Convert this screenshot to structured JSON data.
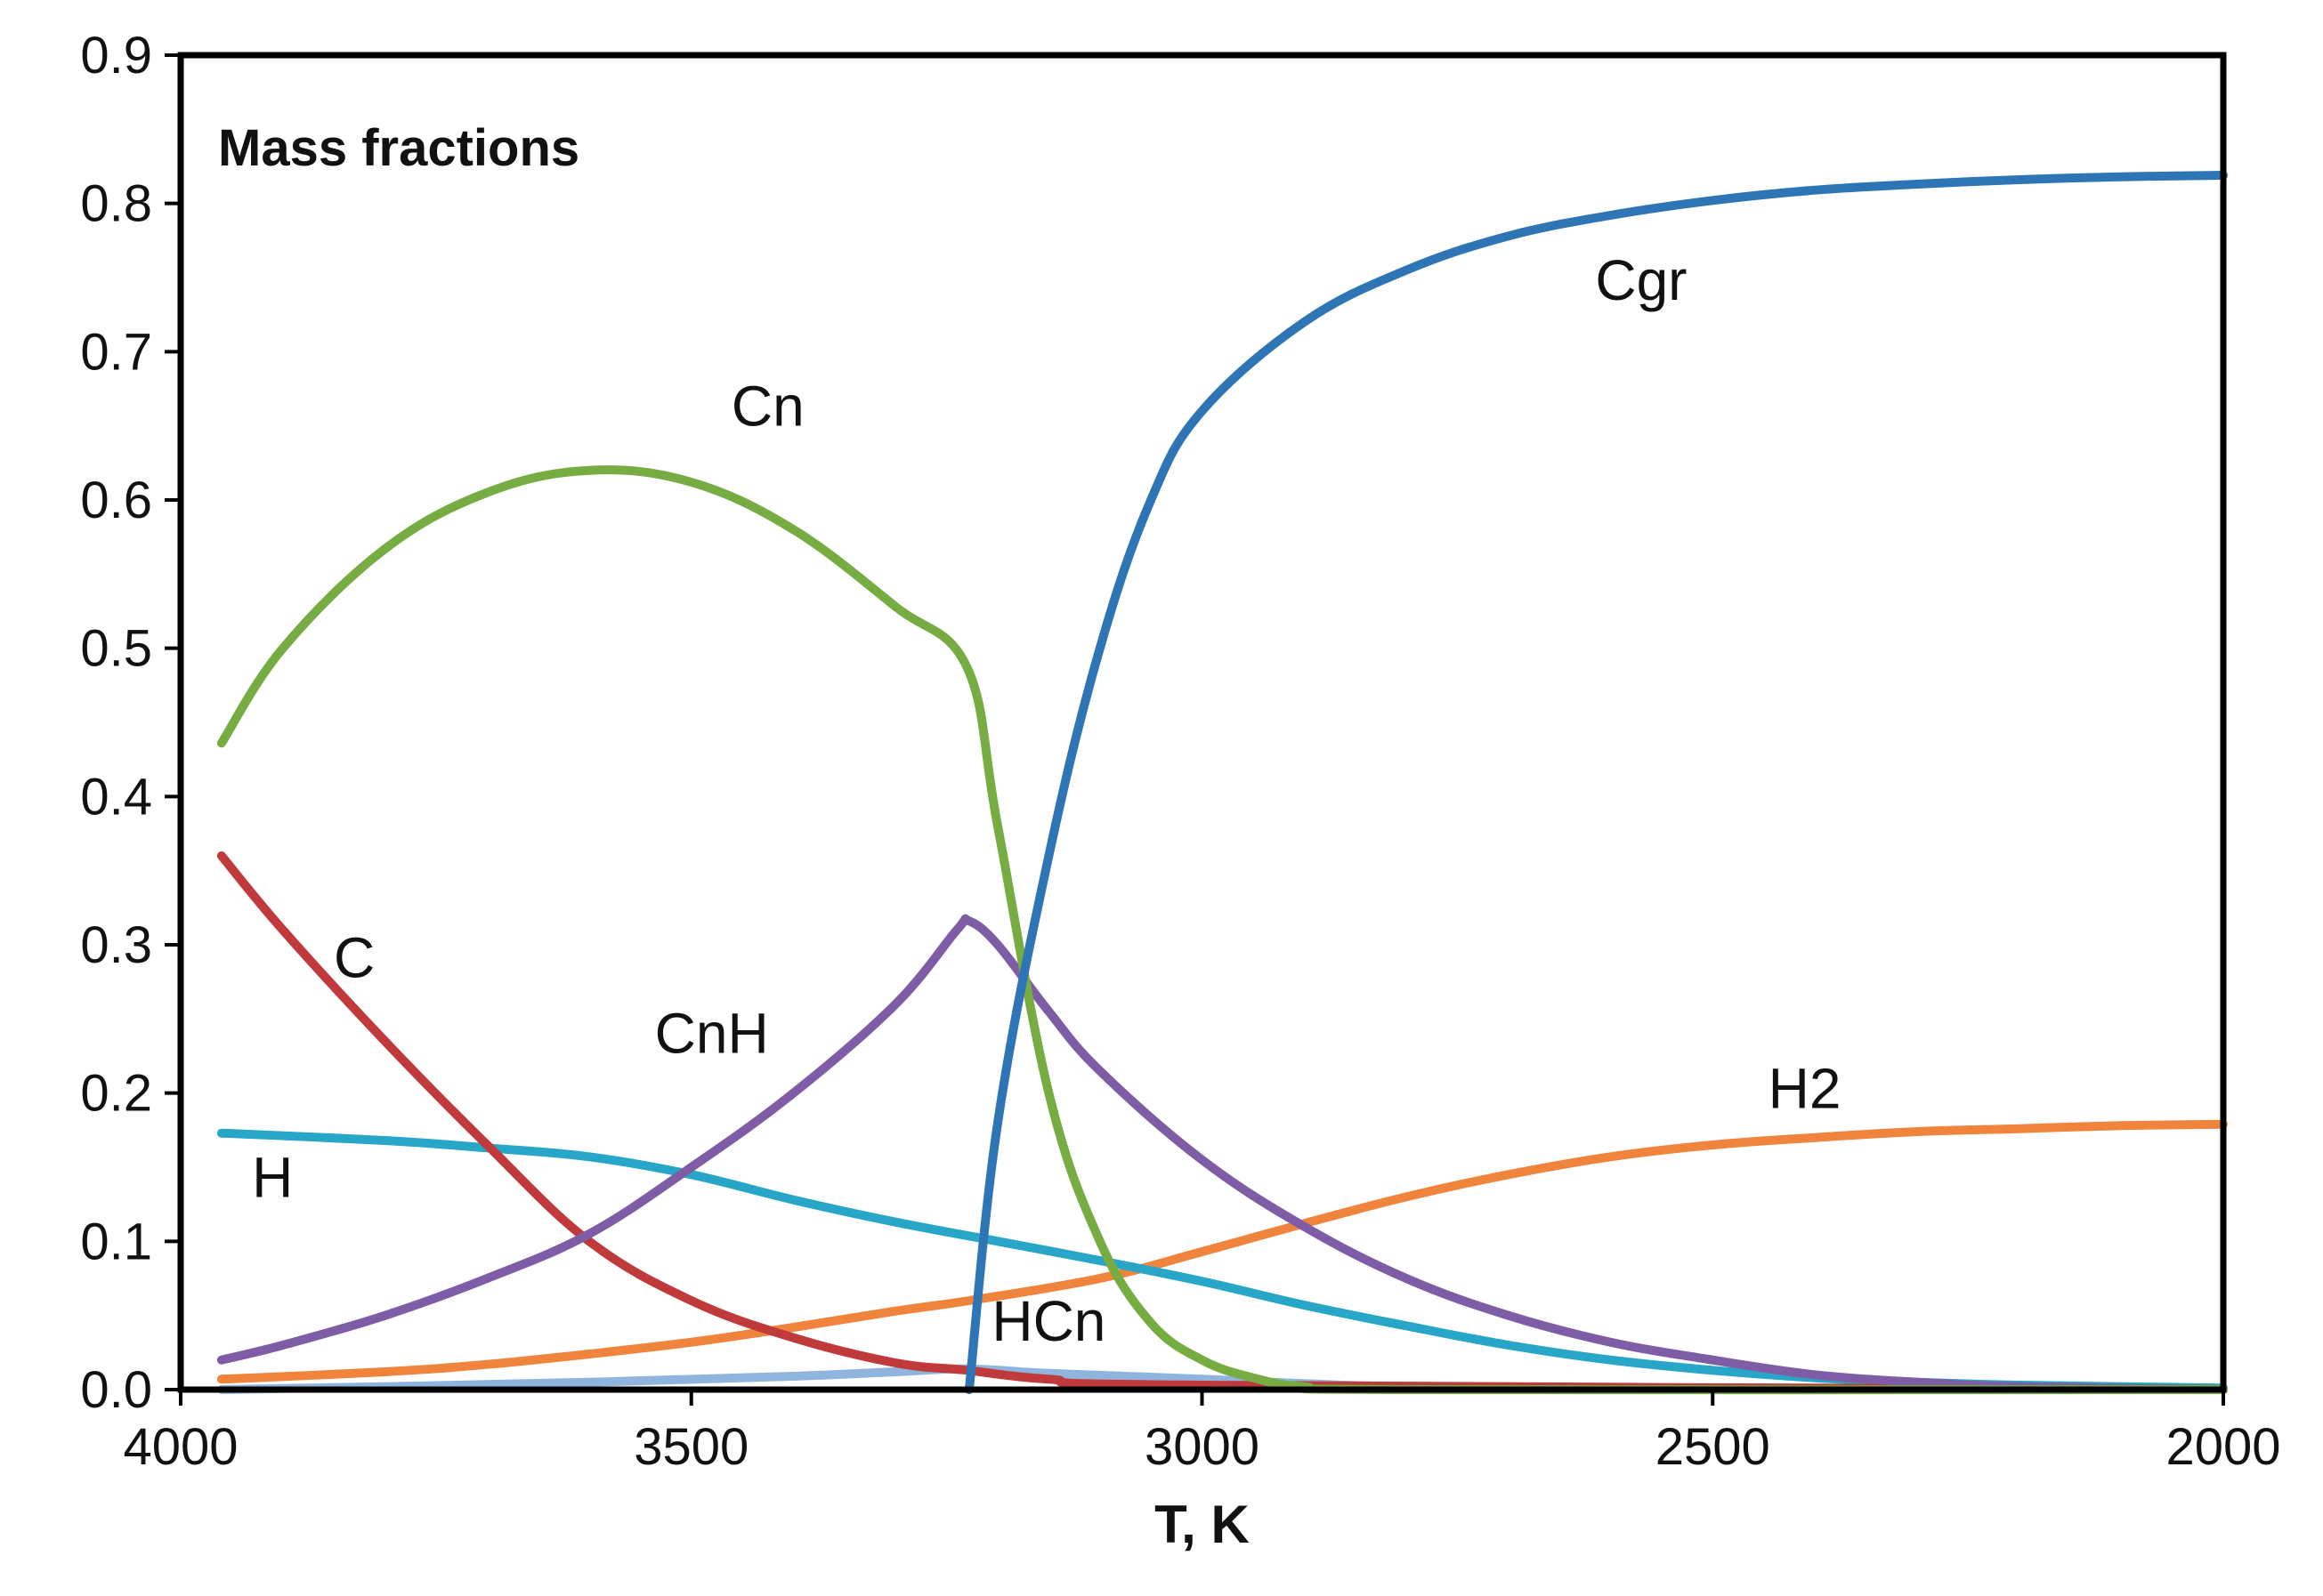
{
  "chart_data": {
    "type": "line",
    "title": "Mass fractions",
    "xlabel": "T, K",
    "ylabel": "",
    "xlim": [
      4000,
      2000
    ],
    "ylim": [
      0,
      0.9
    ],
    "x_ticks": [
      "4000",
      "3500",
      "3000",
      "2500",
      "2000"
    ],
    "y_ticks": [
      "0.0",
      "0.1",
      "0.2",
      "0.3",
      "0.4",
      "0.5",
      "0.6",
      "0.7",
      "0.8",
      "0.9"
    ],
    "grid": false,
    "legend": "inline labels",
    "series": [
      {
        "name": "Cn",
        "color": "#77AC43",
        "points": [
          [
            3960,
            0.436
          ],
          [
            3900,
            0.5
          ],
          [
            3800,
            0.567
          ],
          [
            3700,
            0.605
          ],
          [
            3600,
            0.62
          ],
          [
            3500,
            0.612
          ],
          [
            3400,
            0.58
          ],
          [
            3300,
            0.528
          ],
          [
            3230,
            0.487
          ],
          [
            3200,
            0.38
          ],
          [
            3150,
            0.2
          ],
          [
            3100,
            0.1
          ],
          [
            3050,
            0.045
          ],
          [
            3000,
            0.02
          ],
          [
            2950,
            0.008
          ],
          [
            2900,
            0.002
          ],
          [
            2800,
            0.0
          ],
          [
            2000,
            0.0
          ]
        ]
      },
      {
        "name": "Cgr",
        "color": "#2E75B6",
        "points": [
          [
            3228,
            0.0
          ],
          [
            3200,
            0.18
          ],
          [
            3150,
            0.36
          ],
          [
            3100,
            0.5
          ],
          [
            3050,
            0.6
          ],
          [
            3000,
            0.66
          ],
          [
            2900,
            0.72
          ],
          [
            2800,
            0.755
          ],
          [
            2700,
            0.778
          ],
          [
            2600,
            0.792
          ],
          [
            2500,
            0.802
          ],
          [
            2400,
            0.809
          ],
          [
            2300,
            0.813
          ],
          [
            2200,
            0.816
          ],
          [
            2100,
            0.818
          ],
          [
            2000,
            0.819
          ]
        ]
      },
      {
        "name": "C",
        "color": "#C0393B",
        "points": [
          [
            3960,
            0.36
          ],
          [
            3900,
            0.31
          ],
          [
            3800,
            0.235
          ],
          [
            3700,
            0.165
          ],
          [
            3600,
            0.1
          ],
          [
            3500,
            0.06
          ],
          [
            3400,
            0.035
          ],
          [
            3300,
            0.018
          ],
          [
            3230,
            0.013
          ],
          [
            3150,
            0.007
          ],
          [
            3000,
            0.003
          ],
          [
            2000,
            0.0
          ]
        ]
      },
      {
        "name": "CnH",
        "color": "#7F5CA6",
        "points": [
          [
            3960,
            0.02
          ],
          [
            3900,
            0.03
          ],
          [
            3800,
            0.05
          ],
          [
            3700,
            0.075
          ],
          [
            3600,
            0.105
          ],
          [
            3500,
            0.15
          ],
          [
            3400,
            0.2
          ],
          [
            3300,
            0.26
          ],
          [
            3240,
            0.31
          ],
          [
            3228,
            0.316
          ],
          [
            3200,
            0.3
          ],
          [
            3150,
            0.255
          ],
          [
            3100,
            0.215
          ],
          [
            3000,
            0.155
          ],
          [
            2900,
            0.11
          ],
          [
            2800,
            0.075
          ],
          [
            2700,
            0.05
          ],
          [
            2600,
            0.032
          ],
          [
            2500,
            0.02
          ],
          [
            2400,
            0.01
          ],
          [
            2300,
            0.005
          ],
          [
            2200,
            0.002
          ],
          [
            2000,
            0.0
          ]
        ]
      },
      {
        "name": "H",
        "color": "#27A6C8",
        "points": [
          [
            3960,
            0.173
          ],
          [
            3800,
            0.168
          ],
          [
            3700,
            0.163
          ],
          [
            3600,
            0.157
          ],
          [
            3500,
            0.145
          ],
          [
            3400,
            0.128
          ],
          [
            3300,
            0.113
          ],
          [
            3200,
            0.1
          ],
          [
            3100,
            0.087
          ],
          [
            3000,
            0.073
          ],
          [
            2900,
            0.057
          ],
          [
            2800,
            0.043
          ],
          [
            2700,
            0.03
          ],
          [
            2600,
            0.02
          ],
          [
            2500,
            0.013
          ],
          [
            2400,
            0.008
          ],
          [
            2300,
            0.005
          ],
          [
            2200,
            0.003
          ],
          [
            2000,
            0.001
          ]
        ]
      },
      {
        "name": "H2",
        "color": "#F0843C",
        "points": [
          [
            3960,
            0.007
          ],
          [
            3800,
            0.012
          ],
          [
            3700,
            0.017
          ],
          [
            3600,
            0.024
          ],
          [
            3500,
            0.032
          ],
          [
            3400,
            0.042
          ],
          [
            3300,
            0.053
          ],
          [
            3228,
            0.06
          ],
          [
            3100,
            0.075
          ],
          [
            3000,
            0.093
          ],
          [
            2900,
            0.112
          ],
          [
            2800,
            0.13
          ],
          [
            2700,
            0.145
          ],
          [
            2600,
            0.157
          ],
          [
            2500,
            0.165
          ],
          [
            2400,
            0.17
          ],
          [
            2300,
            0.174
          ],
          [
            2200,
            0.176
          ],
          [
            2100,
            0.178
          ],
          [
            2000,
            0.179
          ]
        ]
      },
      {
        "name": "HCn",
        "color": "#8FB4DD",
        "points": [
          [
            3960,
            0.0
          ],
          [
            3800,
            0.002
          ],
          [
            3600,
            0.005
          ],
          [
            3400,
            0.009
          ],
          [
            3300,
            0.012
          ],
          [
            3230,
            0.014
          ],
          [
            3150,
            0.011
          ],
          [
            3000,
            0.007
          ],
          [
            2900,
            0.004
          ],
          [
            2800,
            0.002
          ],
          [
            2600,
            0.001
          ],
          [
            2000,
            0.0
          ]
        ]
      }
    ],
    "labels": [
      {
        "text": "Cgr",
        "x": 2570,
        "y": 0.735
      },
      {
        "text": "Cn",
        "x": 3425,
        "y": 0.65
      },
      {
        "text": "C",
        "x": 3830,
        "y": 0.278
      },
      {
        "text": "CnH",
        "x": 3480,
        "y": 0.227
      },
      {
        "text": "H2",
        "x": 2410,
        "y": 0.19
      },
      {
        "text": "H",
        "x": 3910,
        "y": 0.13
      },
      {
        "text": "HCn",
        "x": 3150,
        "y": 0.033
      }
    ]
  }
}
